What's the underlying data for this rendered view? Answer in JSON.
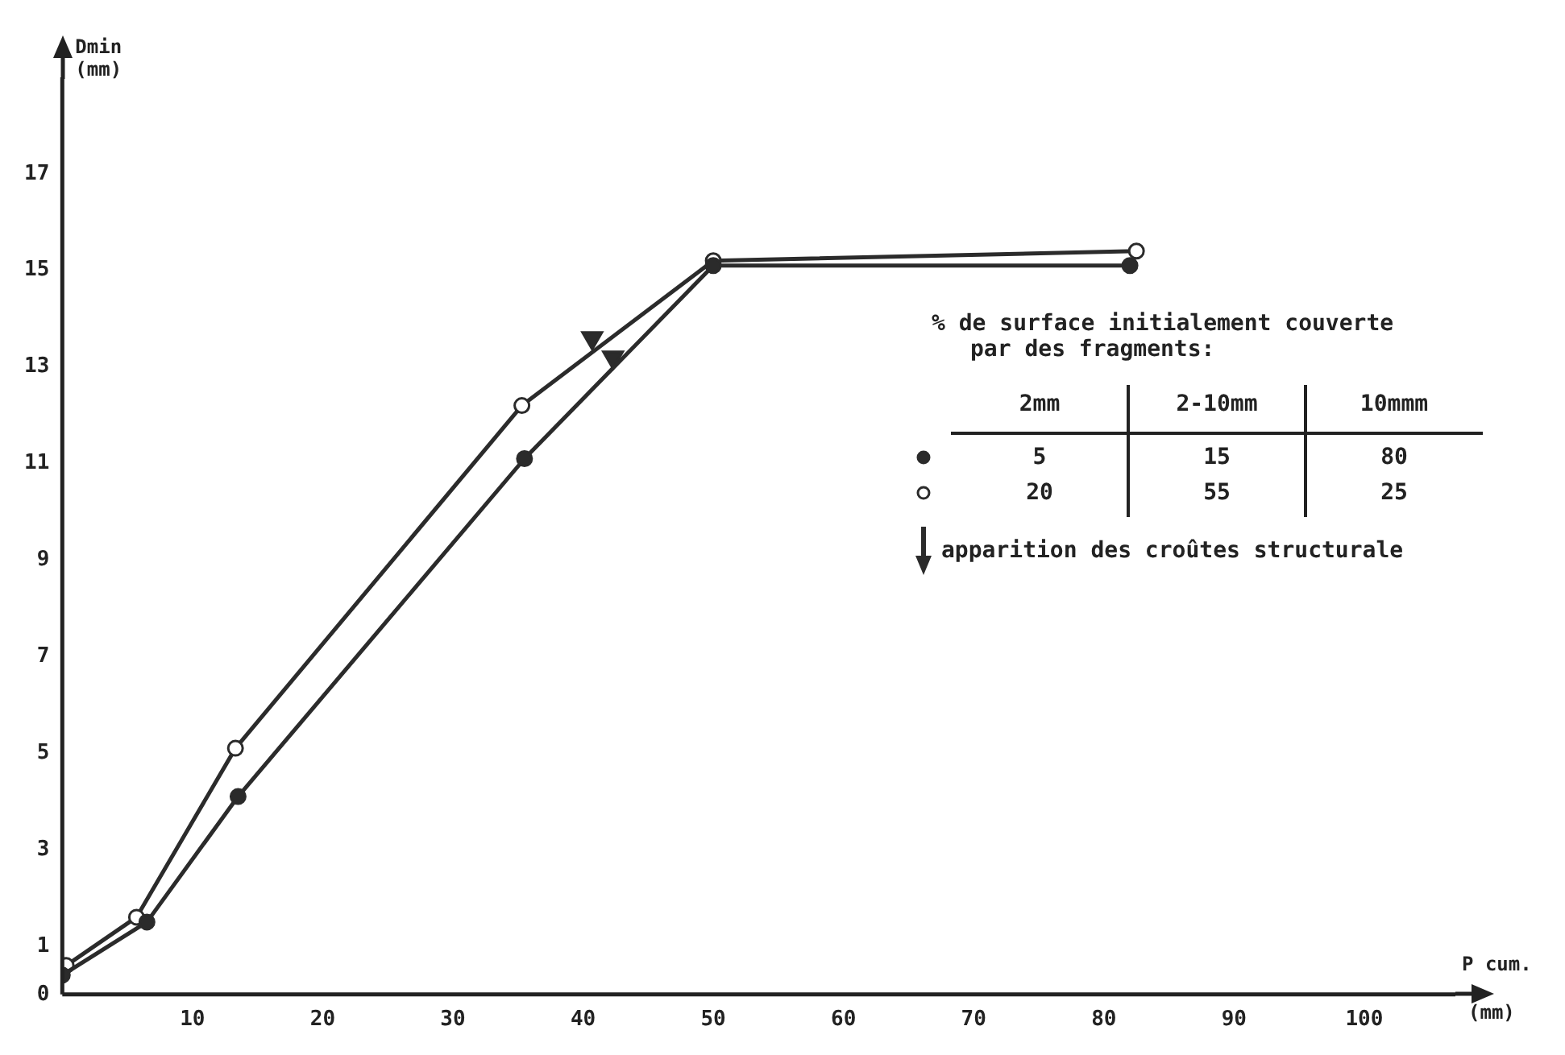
{
  "chart_data": {
    "type": "line",
    "xlabel": "P cum.\n(mm)",
    "ylabel": "Dmin\n(mm)",
    "legend_title": "% de surface initialement couverte\npar des fragments:",
    "annotations": [
      "2mm",
      "2-10mm",
      "10mmm",
      "5",
      "15",
      "80",
      "20",
      "55",
      "25"
    ],
    "xlim": [
      0,
      107
    ],
    "xticks": [
      10,
      20,
      30,
      40,
      50,
      60,
      70,
      80,
      90,
      100
    ],
    "ylim": [
      0,
      19
    ],
    "yticks": [
      0,
      1,
      3,
      5,
      7,
      9,
      11,
      13,
      15,
      17
    ],
    "grid": false,
    "legend": "right",
    "series": [
      {
        "color": "#2b2b2b",
        "marker": "circle",
        "x": [
          0,
          6.5,
          13.5,
          35.5,
          50,
          82
        ],
        "values": [
          0.4,
          1.5,
          4.1,
          11.1,
          15.1,
          15.1
        ]
      },
      {
        "color": "#2b2b2b",
        "colors": [
          "#ffffff",
          "#ffffff",
          "#ffffff",
          "#ffffff",
          "#ffffff",
          "#ffffff"
        ],
        "marker": "circle",
        "x": [
          0.3,
          5.7,
          13.3,
          35.3,
          50,
          82.5
        ],
        "values": [
          0.6,
          1.6,
          5.1,
          12.2,
          15.2,
          15.4
        ]
      },
      {
        "type": "scatter",
        "name": "apparition des croûtes structurale",
        "color": "#2b2b2b",
        "marker": "triangle",
        "x": [
          40.7,
          42.3
        ],
        "values": [
          13.6,
          13.2
        ]
      }
    ]
  }
}
